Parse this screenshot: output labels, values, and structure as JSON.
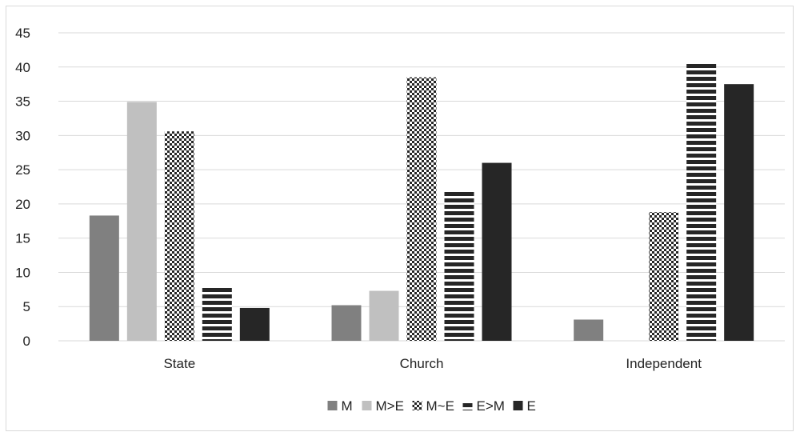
{
  "chart_data": {
    "type": "bar",
    "title": "",
    "xlabel": "",
    "ylabel": "",
    "ylim": [
      0,
      45
    ],
    "yticks": [
      0,
      5,
      10,
      15,
      20,
      25,
      30,
      35,
      40,
      45
    ],
    "grid": true,
    "legend_position": "bottom",
    "categories": [
      "State",
      "Church",
      "Independent"
    ],
    "series": [
      {
        "name": "M",
        "values": [
          18.3,
          5.2,
          3.1
        ],
        "color": "#808080",
        "pattern": "solid"
      },
      {
        "name": "M>E",
        "values": [
          34.9,
          7.3,
          0
        ],
        "color": "#c0c0c0",
        "pattern": "solid"
      },
      {
        "name": "M~E",
        "values": [
          30.6,
          38.5,
          18.8
        ],
        "color": "#262626",
        "pattern": "checker"
      },
      {
        "name": "E>M",
        "values": [
          7.8,
          22,
          40.6
        ],
        "color": "#262626",
        "pattern": "stripes"
      },
      {
        "name": "E",
        "values": [
          4.8,
          26,
          37.5
        ],
        "color": "#262626",
        "pattern": "solid"
      }
    ]
  }
}
